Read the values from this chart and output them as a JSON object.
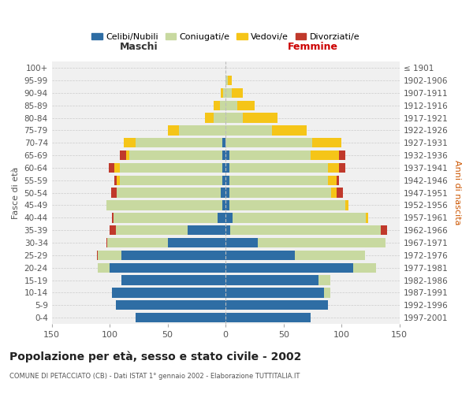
{
  "age_groups": [
    "0-4",
    "5-9",
    "10-14",
    "15-19",
    "20-24",
    "25-29",
    "30-34",
    "35-39",
    "40-44",
    "45-49",
    "50-54",
    "55-59",
    "60-64",
    "65-69",
    "70-74",
    "75-79",
    "80-84",
    "85-89",
    "90-94",
    "95-99",
    "100+"
  ],
  "birth_years": [
    "1997-2001",
    "1992-1996",
    "1987-1991",
    "1982-1986",
    "1977-1981",
    "1972-1976",
    "1967-1971",
    "1962-1966",
    "1957-1961",
    "1952-1956",
    "1947-1951",
    "1942-1946",
    "1937-1941",
    "1932-1936",
    "1927-1931",
    "1922-1926",
    "1917-1921",
    "1912-1916",
    "1907-1911",
    "1902-1906",
    "≤ 1901"
  ],
  "male": {
    "celibi": [
      78,
      95,
      98,
      90,
      100,
      90,
      50,
      33,
      7,
      3,
      4,
      3,
      3,
      3,
      3,
      0,
      0,
      0,
      0,
      0,
      0
    ],
    "coniugati": [
      0,
      0,
      0,
      0,
      10,
      20,
      52,
      62,
      90,
      100,
      90,
      88,
      88,
      80,
      75,
      40,
      10,
      5,
      2,
      0,
      0
    ],
    "vedovi": [
      0,
      0,
      0,
      0,
      0,
      0,
      0,
      0,
      0,
      0,
      0,
      3,
      5,
      3,
      10,
      10,
      8,
      5,
      2,
      0,
      0
    ],
    "divorziati": [
      0,
      0,
      0,
      0,
      0,
      1,
      1,
      5,
      1,
      0,
      5,
      2,
      5,
      5,
      0,
      0,
      0,
      0,
      0,
      0,
      0
    ]
  },
  "female": {
    "nubili": [
      73,
      88,
      85,
      80,
      110,
      60,
      28,
      4,
      6,
      3,
      3,
      3,
      3,
      3,
      0,
      0,
      0,
      0,
      0,
      0,
      0
    ],
    "coniugate": [
      0,
      0,
      5,
      10,
      20,
      60,
      110,
      130,
      115,
      100,
      88,
      85,
      85,
      70,
      75,
      40,
      15,
      10,
      5,
      2,
      0
    ],
    "vedove": [
      0,
      0,
      0,
      0,
      0,
      0,
      0,
      0,
      2,
      3,
      5,
      8,
      10,
      25,
      25,
      30,
      30,
      15,
      10,
      3,
      0
    ],
    "divorziate": [
      0,
      0,
      0,
      0,
      0,
      0,
      0,
      5,
      0,
      0,
      5,
      2,
      5,
      5,
      0,
      0,
      0,
      0,
      0,
      0,
      0
    ]
  },
  "colors": {
    "celibi": "#2e6da4",
    "coniugati": "#c8d9a0",
    "vedovi": "#f5c518",
    "divorziati": "#c0392b"
  },
  "xlabel_left": "Maschi",
  "xlabel_right": "Femmine",
  "ylabel_left": "Fasce di età",
  "ylabel_right": "Anni di nascita",
  "title": "Popolazione per età, sesso e stato civile - 2002",
  "subtitle": "COMUNE DI PETACCIATO (CB) - Dati ISTAT 1° gennaio 2002 - Elaborazione TUTTITALIA.IT",
  "xlim": 150,
  "bg_color": "#f0f0f0",
  "legend_labels": [
    "Celibi/Nubili",
    "Coniugati/e",
    "Vedovi/e",
    "Divorziati/e"
  ],
  "legend_colors": [
    "#2e6da4",
    "#c8d9a0",
    "#f5c518",
    "#c0392b"
  ]
}
